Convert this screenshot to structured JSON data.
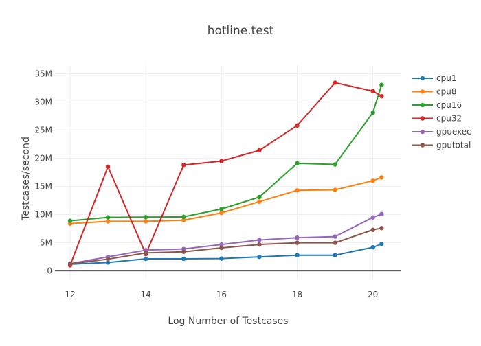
{
  "chart_data": {
    "type": "line",
    "title": "hotline.test",
    "xlabel": "Log Number of Testcases",
    "ylabel": "Testcases/second",
    "xlim": [
      11.6,
      20.75
    ],
    "ylim": [
      -1500000,
      36500000
    ],
    "xticks": [
      12,
      14,
      16,
      18,
      20
    ],
    "xtick_labels": [
      "12",
      "14",
      "16",
      "18",
      "20"
    ],
    "yticks": [
      0,
      5000000,
      10000000,
      15000000,
      20000000,
      25000000,
      30000000,
      35000000
    ],
    "ytick_labels": [
      "0",
      "5M",
      "10M",
      "15M",
      "20M",
      "25M",
      "30M",
      "35M"
    ],
    "grid": true,
    "legend_position": "right",
    "x": [
      12,
      13,
      14,
      15,
      16,
      17,
      18,
      19,
      20,
      20.23
    ],
    "series": [
      {
        "name": "cpu1",
        "color": "#1f77b4",
        "values": [
          1200000,
          1500000,
          2150000,
          2150000,
          2200000,
          2500000,
          2800000,
          2800000,
          4200000,
          4800000
        ]
      },
      {
        "name": "cpu8",
        "color": "#ff7f0e",
        "values": [
          8400000,
          8800000,
          8800000,
          9000000,
          10300000,
          12300000,
          14300000,
          14400000,
          16000000,
          16600000
        ]
      },
      {
        "name": "cpu16",
        "color": "#2ca02c",
        "values": [
          8900000,
          9500000,
          9550000,
          9600000,
          11000000,
          13100000,
          19100000,
          18900000,
          28100000,
          33000000
        ]
      },
      {
        "name": "cpu32",
        "color": "#d62728",
        "values": [
          1000000,
          18500000,
          3000000,
          18800000,
          19500000,
          21400000,
          25800000,
          33400000,
          31900000,
          31000000
        ]
      },
      {
        "name": "gpuexec",
        "color": "#9467bd",
        "values": [
          1300000,
          2500000,
          3700000,
          3900000,
          4700000,
          5500000,
          5900000,
          6100000,
          9500000,
          10100000
        ]
      },
      {
        "name": "gputotal",
        "color": "#8c564b",
        "values": [
          1250000,
          2100000,
          3200000,
          3400000,
          4100000,
          4700000,
          5000000,
          5000000,
          7300000,
          7600000
        ]
      }
    ]
  }
}
